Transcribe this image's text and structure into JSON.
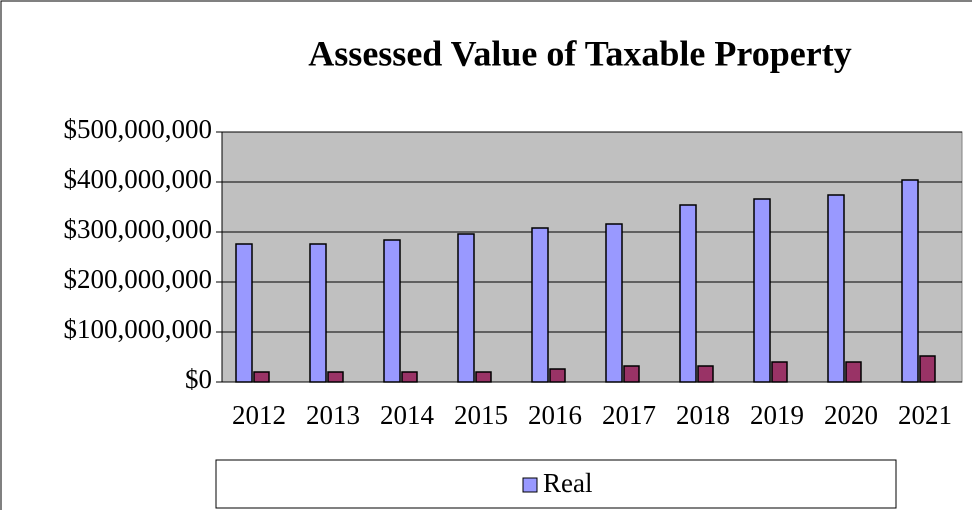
{
  "chart_data": {
    "type": "bar",
    "title": "Assessed Value of Taxable Property",
    "categories": [
      "2012",
      "2013",
      "2014",
      "2015",
      "2016",
      "2017",
      "2018",
      "2019",
      "2020",
      "2021"
    ],
    "series": [
      {
        "name": "Real",
        "color": "#9999ff",
        "values": [
          276000000,
          276000000,
          284000000,
          296000000,
          308000000,
          316000000,
          354000000,
          366000000,
          374000000,
          404000000
        ]
      },
      {
        "color": "#993366",
        "values": [
          20000000,
          20000000,
          20000000,
          20000000,
          26000000,
          32000000,
          32000000,
          40000000,
          40000000,
          52000000
        ]
      }
    ],
    "ylim": [
      0,
      500000000
    ],
    "yticks": [
      {
        "value": 0,
        "label": "$0"
      },
      {
        "value": 100000000,
        "label": "$100,000,000"
      },
      {
        "value": 200000000,
        "label": "$200,000,000"
      },
      {
        "value": 300000000,
        "label": "$300,000,000"
      },
      {
        "value": 400000000,
        "label": "$400,000,000"
      },
      {
        "value": 500000000,
        "label": "$500,000,000"
      }
    ],
    "grid": true,
    "plot_background": "#c0c0c0",
    "legend": "bottom"
  }
}
